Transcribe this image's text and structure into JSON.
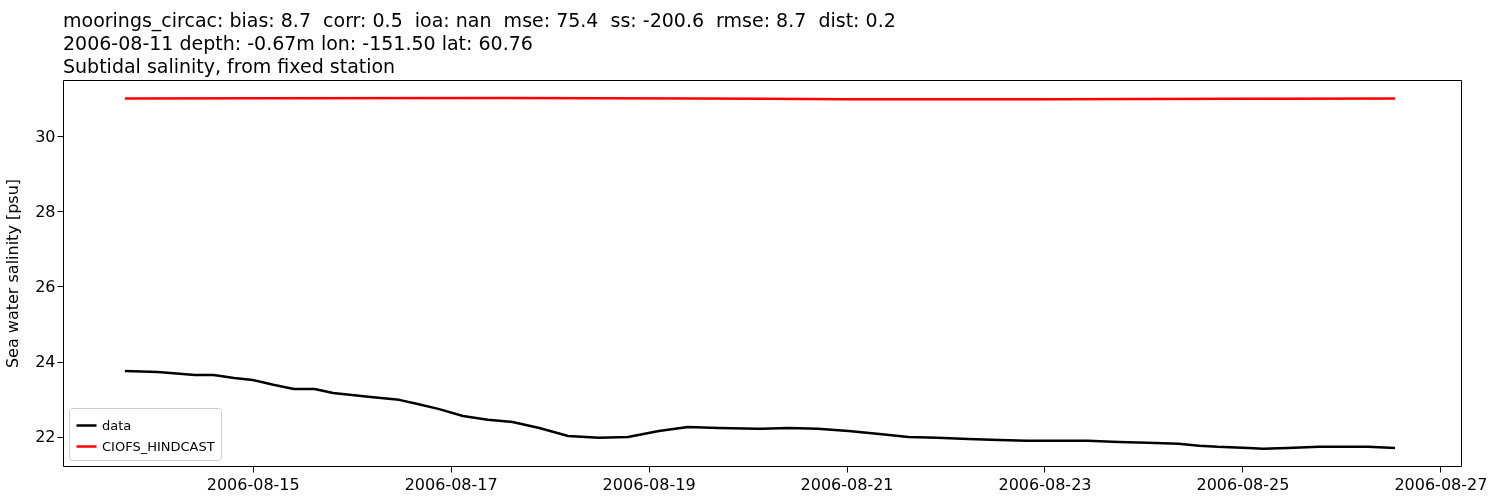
{
  "chart_data": {
    "type": "line",
    "title": "moorings_circac: bias: 8.7  corr: 0.5  ioa: nan  mse: 75.4  ss: -200.6  rmse: 8.7  dist: 0.2\n2006-08-11 depth: -0.67m lon: -151.50 lat: 60.76\nSubtidal salinity, from fixed station",
    "ylabel": "Sea water salinity [psu]",
    "xlim": [
      "2006-08-13T02:00",
      "2006-08-27T05:00"
    ],
    "xticks": [
      "2006-08-15",
      "2006-08-17",
      "2006-08-19",
      "2006-08-21",
      "2006-08-23",
      "2006-08-25",
      "2006-08-27"
    ],
    "ylim": [
      21.22,
      31.49
    ],
    "yticks": [
      22,
      24,
      26,
      28,
      30
    ],
    "grid": false,
    "legend": "bottom left",
    "line_style": "solid",
    "marker": "none",
    "series": [
      {
        "name": "data",
        "color": "#000000",
        "x": [
          "2006-08-13T17:00",
          "2006-08-14T01:00",
          "2006-08-14T10:00",
          "2006-08-14T14:30",
          "2006-08-14T19:30",
          "2006-08-15T00:00",
          "2006-08-15T05:00",
          "2006-08-15T10:00",
          "2006-08-15T15:00",
          "2006-08-15T19:30",
          "2006-08-16T04:00",
          "2006-08-16T11:30",
          "2006-08-16T16:00",
          "2006-08-16T21:00",
          "2006-08-17T03:00",
          "2006-08-17T09:00",
          "2006-08-17T15:00",
          "2006-08-17T21:30",
          "2006-08-18T04:30",
          "2006-08-18T12:00",
          "2006-08-18T19:00",
          "2006-08-19T02:30",
          "2006-08-19T09:30",
          "2006-08-19T17:00",
          "2006-08-20T02:30",
          "2006-08-20T10:00",
          "2006-08-20T17:00",
          "2006-08-21T00:30",
          "2006-08-21T08:00",
          "2006-08-21T15:00",
          "2006-08-21T22:00",
          "2006-08-22T05:30",
          "2006-08-22T13:00",
          "2006-08-22T20:00",
          "2006-08-23T03:30",
          "2006-08-23T10:30",
          "2006-08-23T18:00",
          "2006-08-24T01:00",
          "2006-08-24T08:30",
          "2006-08-24T13:30",
          "2006-08-24T18:00",
          "2006-08-25T01:30",
          "2006-08-25T05:00",
          "2006-08-25T11:00",
          "2006-08-25T18:30",
          "2006-08-26T01:30",
          "2006-08-26T06:30",
          "2006-08-26T13:00"
        ],
        "values": [
          23.75,
          23.72,
          23.64,
          23.64,
          23.56,
          23.51,
          23.38,
          23.27,
          23.27,
          23.16,
          23.06,
          22.98,
          22.87,
          22.74,
          22.55,
          22.45,
          22.39,
          22.23,
          22.02,
          21.97,
          21.99,
          22.15,
          22.26,
          22.23,
          22.21,
          22.23,
          22.21,
          22.15,
          22.07,
          21.99,
          21.97,
          21.94,
          21.91,
          21.89,
          21.89,
          21.89,
          21.86,
          21.84,
          21.81,
          21.76,
          21.73,
          21.7,
          21.68,
          21.7,
          21.73,
          21.73,
          21.73,
          21.7
        ]
      },
      {
        "name": "CIOFS_HINDCAST",
        "color": "#ff0000",
        "x": [
          "2006-08-13T17:00",
          "2006-08-17T12:00",
          "2006-08-19T12:00",
          "2006-08-21T00:00",
          "2006-08-23T00:00",
          "2006-08-25T00:00",
          "2006-08-26T13:00"
        ],
        "values": [
          31.0,
          31.01,
          31.0,
          30.98,
          30.98,
          30.99,
          31.0
        ]
      }
    ]
  }
}
